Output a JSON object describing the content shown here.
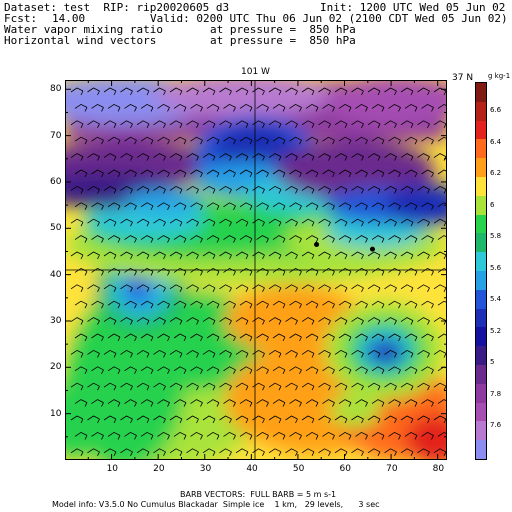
{
  "header": {
    "dataset_line": "Dataset: test  RIP: rip20020605 d3",
    "init_line": "Init: 1200 UTC Wed 05 Jun 02",
    "fcst_label": "Fcst:",
    "fcst_value": "14.00",
    "valid_line": "Valid: 0200 UTC Thu 06 Jun 02 (2100 CDT Wed 05 Jun 02)",
    "field1_name": "Water vapor mixing ratio",
    "field1_pressure": "at pressure =  850 hPa",
    "field2_name": "Horizontal wind vectors",
    "field2_pressure": "at pressure =  850 hPa"
  },
  "map": {
    "top_label": "101 W",
    "right_label": "37 N",
    "x_ticks": [
      "10",
      "20",
      "30",
      "40",
      "50",
      "60",
      "70",
      "80"
    ],
    "y_ticks": [
      "10",
      "20",
      "30",
      "40",
      "50",
      "60",
      "70",
      "80"
    ],
    "stations": [
      {
        "x": 54,
        "y": 46.5
      },
      {
        "x": 66,
        "y": 45.5
      }
    ]
  },
  "colorbar": {
    "unit": "g kg-1",
    "labels": [
      "6.6",
      "6.4",
      "6.2",
      "6",
      "5.8",
      "5.6",
      "5.4",
      "5.2",
      "5",
      "7.8",
      "7.6"
    ],
    "colors": [
      "#7f1a14",
      "#b52218",
      "#e3231d",
      "#ff6a1c",
      "#ffa018",
      "#ffe33a",
      "#a9e33a",
      "#27d24d",
      "#1fb86b",
      "#2ec8d8",
      "#27a0e6",
      "#2355d8",
      "#1e2fb6",
      "#1612a0",
      "#3a1c86",
      "#6a2a8e",
      "#8e3aa0",
      "#a64eb2",
      "#b87ad0",
      "#8b8ef0"
    ]
  },
  "footer": {
    "barb_label": "BARB VECTORS:  FULL BARB = 5 m s-1",
    "model_info": "Model info: V3.5.0 No Cumulus Blackadar  Simple ice    1 km,   29 levels,      3 sec"
  }
}
